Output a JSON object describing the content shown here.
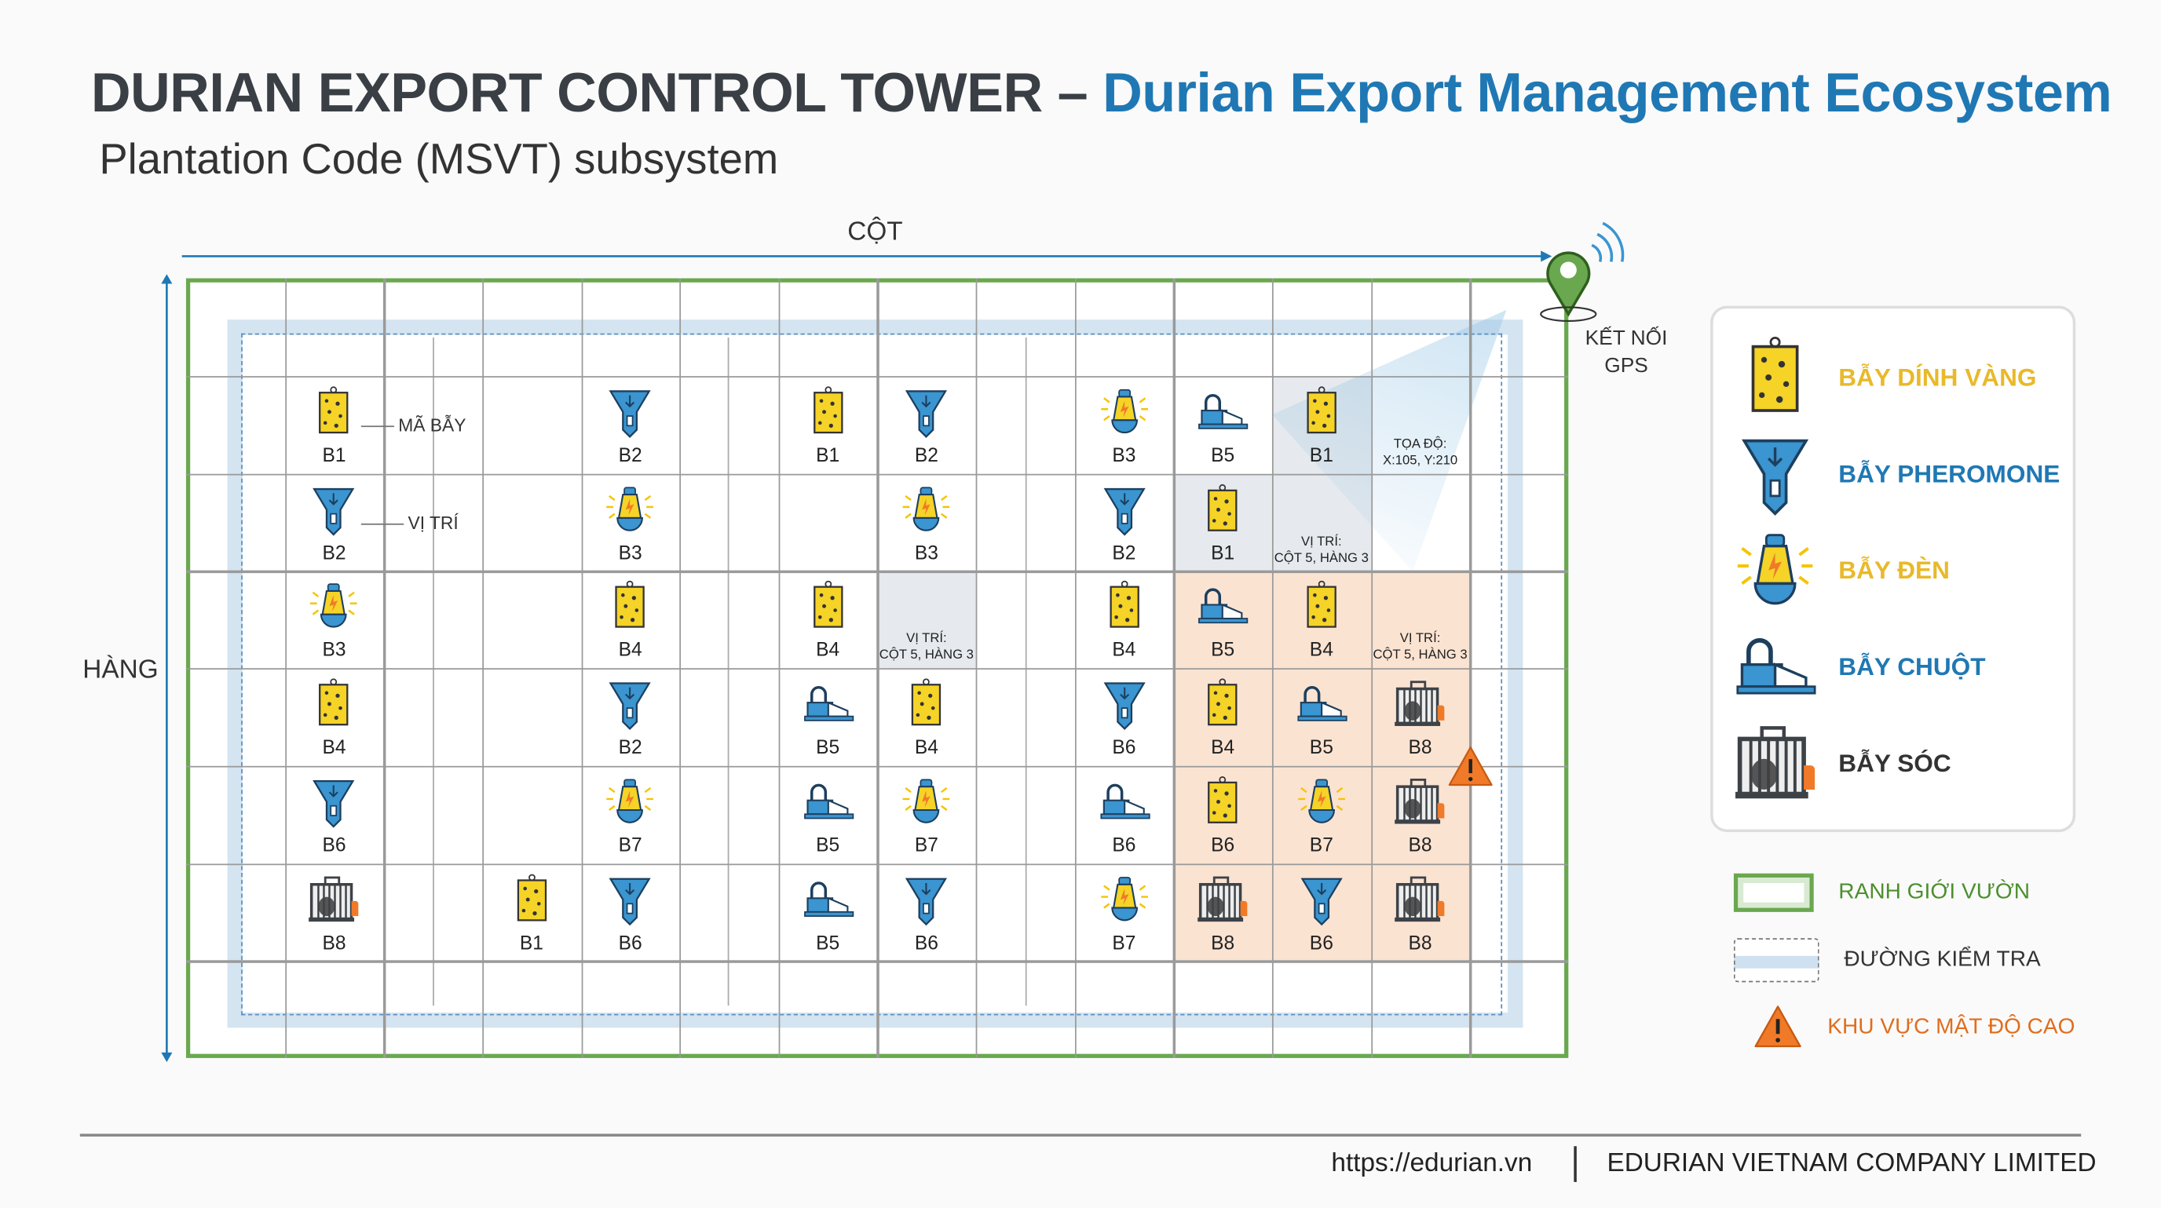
{
  "header": {
    "title_main": "DURIAN EXPORT CONTROL TOWER – ",
    "title_accent": "Durian Export Management Ecosystem",
    "subtitle": "Plantation Code (MSVT) subsystem"
  },
  "axes": {
    "col_label": "CỘT",
    "row_label": "HÀNG",
    "gps_label_1": "KẾT NỐI",
    "gps_label_2": "GPS"
  },
  "callouts": {
    "trap_code": "MÃ BẪY",
    "position": "VỊ TRÍ"
  },
  "colors": {
    "boundary": "#6aa84f",
    "accent": "#1f78b4",
    "yellow": "#f5d327",
    "blue": "#3a95d0",
    "high_density": "#fbe3d2",
    "warning": "#f07a28"
  },
  "grid": {
    "columns": 14,
    "rows": 8,
    "traps": [
      {
        "row": 1,
        "col": 1,
        "type": "sticky",
        "code": "B1"
      },
      {
        "row": 1,
        "col": 4,
        "type": "pheromone",
        "code": "B2"
      },
      {
        "row": 1,
        "col": 6,
        "type": "sticky",
        "code": "B1"
      },
      {
        "row": 1,
        "col": 7,
        "type": "pheromone",
        "code": "B2"
      },
      {
        "row": 1,
        "col": 9,
        "type": "lamp",
        "code": "B3"
      },
      {
        "row": 1,
        "col": 10,
        "type": "mouse",
        "code": "B5"
      },
      {
        "row": 1,
        "col": 11,
        "type": "sticky",
        "code": "B1"
      },
      {
        "row": 2,
        "col": 1,
        "type": "pheromone",
        "code": "B2"
      },
      {
        "row": 2,
        "col": 4,
        "type": "lamp",
        "code": "B3"
      },
      {
        "row": 2,
        "col": 7,
        "type": "lamp",
        "code": "B3"
      },
      {
        "row": 2,
        "col": 9,
        "type": "pheromone",
        "code": "B2"
      },
      {
        "row": 2,
        "col": 10,
        "type": "sticky",
        "code": "B1"
      },
      {
        "row": 3,
        "col": 1,
        "type": "lamp",
        "code": "B3"
      },
      {
        "row": 3,
        "col": 4,
        "type": "sticky",
        "code": "B4"
      },
      {
        "row": 3,
        "col": 6,
        "type": "sticky",
        "code": "B4"
      },
      {
        "row": 3,
        "col": 9,
        "type": "sticky",
        "code": "B4"
      },
      {
        "row": 3,
        "col": 10,
        "type": "mouse",
        "code": "B5"
      },
      {
        "row": 3,
        "col": 11,
        "type": "sticky",
        "code": "B4"
      },
      {
        "row": 4,
        "col": 1,
        "type": "sticky",
        "code": "B4"
      },
      {
        "row": 4,
        "col": 4,
        "type": "pheromone",
        "code": "B2"
      },
      {
        "row": 4,
        "col": 6,
        "type": "mouse",
        "code": "B5"
      },
      {
        "row": 4,
        "col": 7,
        "type": "sticky",
        "code": "B4"
      },
      {
        "row": 4,
        "col": 9,
        "type": "pheromone",
        "code": "B6"
      },
      {
        "row": 4,
        "col": 10,
        "type": "sticky",
        "code": "B4"
      },
      {
        "row": 4,
        "col": 11,
        "type": "mouse",
        "code": "B5"
      },
      {
        "row": 4,
        "col": 12,
        "type": "cage",
        "code": "B8"
      },
      {
        "row": 5,
        "col": 1,
        "type": "pheromone",
        "code": "B6"
      },
      {
        "row": 5,
        "col": 4,
        "type": "lamp",
        "code": "B7"
      },
      {
        "row": 5,
        "col": 6,
        "type": "mouse",
        "code": "B5"
      },
      {
        "row": 5,
        "col": 7,
        "type": "lamp",
        "code": "B7"
      },
      {
        "row": 5,
        "col": 9,
        "type": "mouse",
        "code": "B6"
      },
      {
        "row": 5,
        "col": 10,
        "type": "sticky",
        "code": "B6"
      },
      {
        "row": 5,
        "col": 11,
        "type": "lamp",
        "code": "B7"
      },
      {
        "row": 5,
        "col": 12,
        "type": "cage",
        "code": "B8"
      },
      {
        "row": 6,
        "col": 1,
        "type": "cage",
        "code": "B8"
      },
      {
        "row": 6,
        "col": 3,
        "type": "sticky",
        "code": "B1"
      },
      {
        "row": 6,
        "col": 4,
        "type": "pheromone",
        "code": "B6"
      },
      {
        "row": 6,
        "col": 6,
        "type": "mouse",
        "code": "B5"
      },
      {
        "row": 6,
        "col": 7,
        "type": "pheromone",
        "code": "B6"
      },
      {
        "row": 6,
        "col": 9,
        "type": "lamp",
        "code": "B7"
      },
      {
        "row": 6,
        "col": 10,
        "type": "cage",
        "code": "B8"
      },
      {
        "row": 6,
        "col": 11,
        "type": "pheromone",
        "code": "B6"
      },
      {
        "row": 6,
        "col": 12,
        "type": "cage",
        "code": "B8"
      }
    ],
    "notes": [
      {
        "row": 1,
        "col": 12,
        "line1": "TỌA ĐỘ:",
        "line2": "X:105, Y:210"
      },
      {
        "row": 2,
        "col": 11,
        "line1": "VỊ TRÍ:",
        "line2": "CỘT 5, HÀNG 3"
      },
      {
        "row": 3,
        "col": 7,
        "line1": "VỊ TRÍ:",
        "line2": "CỘT 5, HÀNG 3"
      },
      {
        "row": 3,
        "col": 12,
        "line1": "VỊ TRÍ:",
        "line2": "CỘT 5, HÀNG 3"
      }
    ],
    "highlighted_cells": [
      {
        "row": 1,
        "col": 11
      },
      {
        "row": 2,
        "col": 10
      },
      {
        "row": 2,
        "col": 11
      },
      {
        "row": 3,
        "col": 7
      }
    ],
    "high_density_area": {
      "rows": [
        3,
        6
      ],
      "cols": [
        10,
        12
      ]
    }
  },
  "legend": {
    "traps": [
      {
        "type": "sticky",
        "label": "BẪY DÍNH VÀNG",
        "color": "#e8b92a"
      },
      {
        "type": "pheromone",
        "label": "BẪY PHEROMONE",
        "color": "#1f78b4"
      },
      {
        "type": "lamp",
        "label": "BẪY ĐÈN",
        "color": "#e8b92a"
      },
      {
        "type": "mouse",
        "label": "BẪY CHUỘT",
        "color": "#1f78b4"
      },
      {
        "type": "cage",
        "label": "BẪY SÓC",
        "color": "#333333"
      }
    ],
    "areas": [
      {
        "kind": "boundary",
        "label": "RANH GIỚI VƯỜN",
        "color": "#4d8f2e"
      },
      {
        "kind": "inspection",
        "label": "ĐƯỜNG KIỂM TRA",
        "color": "#333333"
      },
      {
        "kind": "warning",
        "label": "KHU VỰC MẬT ĐỘ CAO",
        "color": "#e06d1c"
      }
    ]
  },
  "footer": {
    "url": "https://edurian.vn",
    "company": "EDURIAN VIETNAM COMPANY LIMITED"
  }
}
